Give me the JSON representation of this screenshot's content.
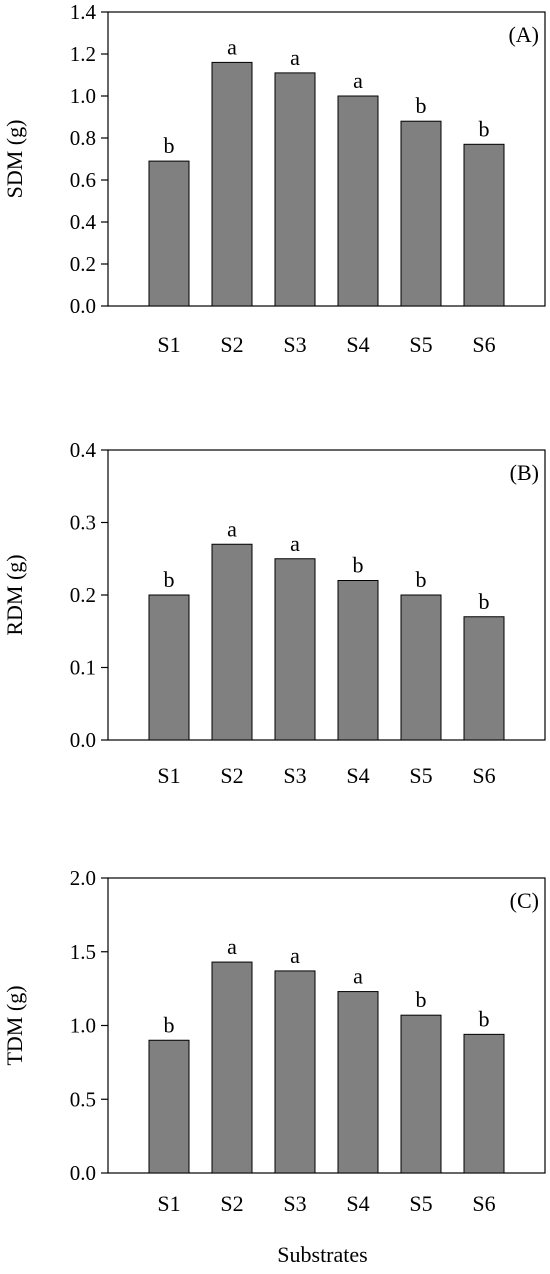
{
  "chart_data": [
    {
      "type": "bar",
      "panel_label": "(A)",
      "ylabel": "SDM (g)",
      "xlabel": "",
      "categories": [
        "S1",
        "S2",
        "S3",
        "S4",
        "S5",
        "S6"
      ],
      "values": [
        0.69,
        1.16,
        1.11,
        1.0,
        0.88,
        0.77
      ],
      "significance": [
        "b",
        "a",
        "a",
        "a",
        "b",
        "b"
      ],
      "ylim": [
        0,
        1.4
      ],
      "yticks": [
        "0.0",
        "0.2",
        "0.4",
        "0.6",
        "0.8",
        "1.0",
        "1.2",
        "1.4"
      ],
      "bar_color": "#808080",
      "grid": false
    },
    {
      "type": "bar",
      "panel_label": "(B)",
      "ylabel": "RDM (g)",
      "xlabel": "",
      "categories": [
        "S1",
        "S2",
        "S3",
        "S4",
        "S5",
        "S6"
      ],
      "values": [
        0.2,
        0.27,
        0.25,
        0.22,
        0.2,
        0.17
      ],
      "significance": [
        "b",
        "a",
        "a",
        "b",
        "b",
        "b"
      ],
      "ylim": [
        0,
        0.4
      ],
      "yticks": [
        "0.0",
        "0.1",
        "0.2",
        "0.3",
        "0.4"
      ],
      "bar_color": "#808080",
      "grid": false
    },
    {
      "type": "bar",
      "panel_label": "(C)",
      "ylabel": "TDM (g)",
      "xlabel": "Substrates",
      "categories": [
        "S1",
        "S2",
        "S3",
        "S4",
        "S5",
        "S6"
      ],
      "values": [
        0.9,
        1.43,
        1.37,
        1.23,
        1.07,
        0.94
      ],
      "significance": [
        "b",
        "a",
        "a",
        "a",
        "b",
        "b"
      ],
      "ylim": [
        0,
        2.0
      ],
      "yticks": [
        "0.0",
        "0.5",
        "1.0",
        "1.5",
        "2.0"
      ],
      "bar_color": "#808080",
      "grid": false
    }
  ]
}
